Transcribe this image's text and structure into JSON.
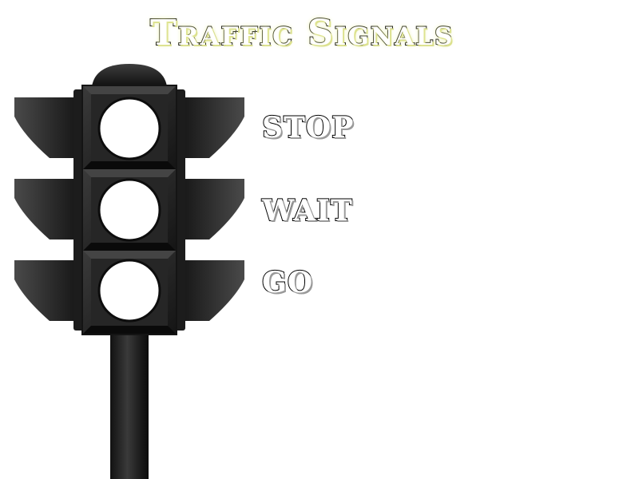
{
  "title": "Traffic Signals",
  "signals": [
    {
      "label": "STOP"
    },
    {
      "label": "WAIT"
    },
    {
      "label": "GO"
    }
  ],
  "colors": {
    "housing": "#1e1e1e",
    "visor": "#2a2a2a",
    "lens": "#ffffff",
    "pole": "#222222"
  }
}
